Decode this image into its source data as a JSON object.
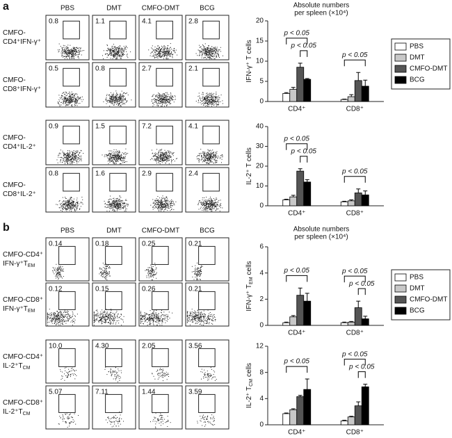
{
  "panels": [
    {
      "label": "a",
      "columns": [
        "PBS",
        "DMT",
        "CMFO-DMT",
        "BCG"
      ],
      "rows": [
        {
          "label": [
            {
              "text": "CMFO-"
            },
            {
              "text": "CD4⁺IFN-γ⁺"
            }
          ],
          "gates": [
            "0.8",
            "1.1",
            "4.1",
            "2.8"
          ]
        },
        {
          "label": [
            {
              "text": "CMFO-"
            },
            {
              "text": "CD8⁺IFN-γ⁺"
            }
          ],
          "gates": [
            "0.5",
            "0.8",
            "2.7",
            "2.1"
          ]
        },
        {
          "label": [
            {
              "text": "CMFO-"
            },
            {
              "text": "CD4⁺IL-2⁺"
            }
          ],
          "gates": [
            "0.9",
            "1.5",
            "7.2",
            "4.1"
          ]
        },
        {
          "label": [
            {
              "text": "CMFO-"
            },
            {
              "text": "CD8⁺IL-2⁺"
            }
          ],
          "gates": [
            "0.8",
            "1.6",
            "2.9",
            "2.4"
          ]
        }
      ]
    },
    {
      "label": "b",
      "columns": [
        "PBS",
        "DMT",
        "CMFO-DMT",
        "BCG"
      ],
      "rows": [
        {
          "label": [
            {
              "text": "CMFO-CD4⁺"
            },
            {
              "text": "IFN-γ⁺T",
              "sub": "EM"
            }
          ],
          "gates": [
            "0.14",
            "0.18",
            "0.25",
            "0.21"
          ]
        },
        {
          "label": [
            {
              "text": "CMFO-CD8⁺"
            },
            {
              "text": "IFN-γ⁺T",
              "sub": "EM"
            }
          ],
          "gates": [
            "0.12",
            "0.15",
            "0.26",
            "0.21"
          ]
        },
        {
          "label": [
            {
              "text": "CMFO-CD4⁺"
            },
            {
              "text": "IL-2⁺T",
              "sub": "CM"
            }
          ],
          "gates": [
            "10.0",
            "4.30",
            "2.05",
            "3.56"
          ]
        },
        {
          "label": [
            {
              "text": "CMFO-CD8⁺"
            },
            {
              "text": "IL-2⁺T",
              "sub": "CM"
            }
          ],
          "gates": [
            "5.07",
            "7.11",
            "1.44",
            "3.59"
          ]
        }
      ]
    }
  ],
  "chart_data": [
    {
      "type": "bar",
      "title_lines": [
        "Absolute numbers",
        "per spleen (×10⁴)"
      ],
      "ylabel": {
        "text": "IFN-γ⁺ T cells"
      },
      "categories": [
        "CD4⁺",
        "CD8⁺"
      ],
      "series": [
        {
          "name": "PBS",
          "color": "#ffffff",
          "values": [
            2,
            0.5
          ],
          "errors": [
            0.2,
            0.1
          ]
        },
        {
          "name": "DMT",
          "color": "#c8c8c8",
          "values": [
            3,
            1.2
          ],
          "errors": [
            0.5,
            0.5
          ]
        },
        {
          "name": "CMFO-DMT",
          "color": "#555555",
          "values": [
            8.5,
            5.2
          ],
          "errors": [
            1,
            2
          ]
        },
        {
          "name": "BCG",
          "color": "#000000",
          "values": [
            5.5,
            3.8
          ],
          "errors": [
            0.2,
            1.5
          ]
        }
      ],
      "ylim": [
        0,
        20
      ],
      "yticks": [
        0,
        5,
        10,
        15,
        20
      ],
      "legend": "right",
      "annotations": [
        {
          "text": "p < 0.05",
          "category": "CD4⁺",
          "from": "PBS",
          "to": "BCG"
        },
        {
          "text": "p < 0.05",
          "category": "CD4⁺",
          "from": "CMFO-DMT",
          "to": "BCG"
        },
        {
          "text": "p < 0.05",
          "category": "CD8⁺",
          "from": "PBS",
          "to": "BCG"
        }
      ]
    },
    {
      "type": "bar",
      "ylabel": {
        "text": "IL-2⁺ T cells"
      },
      "categories": [
        "CD4⁺",
        "CD8⁺"
      ],
      "series": [
        {
          "name": "PBS",
          "color": "#ffffff",
          "values": [
            3,
            2
          ],
          "errors": [
            0.3,
            0.3
          ]
        },
        {
          "name": "DMT",
          "color": "#c8c8c8",
          "values": [
            4.5,
            2.5
          ],
          "errors": [
            0.8,
            0.5
          ]
        },
        {
          "name": "CMFO-DMT",
          "color": "#555555",
          "values": [
            17.5,
            6.5
          ],
          "errors": [
            1.2,
            2
          ]
        },
        {
          "name": "BCG",
          "color": "#000000",
          "values": [
            12,
            5.5
          ],
          "errors": [
            1.2,
            2
          ]
        }
      ],
      "ylim": [
        0,
        40
      ],
      "yticks": [
        0,
        10,
        20,
        30,
        40
      ],
      "annotations": [
        {
          "text": "p < 0.05",
          "category": "CD4⁺",
          "from": "PBS",
          "to": "BCG"
        },
        {
          "text": "p < 0.05",
          "category": "CD4⁺",
          "from": "CMFO-DMT",
          "to": "BCG"
        },
        {
          "text": "p < 0.05",
          "category": "CD8⁺",
          "from": "PBS",
          "to": "BCG"
        }
      ]
    },
    {
      "type": "bar",
      "title_lines": [
        "Absolute numbers",
        "per spleen (×10⁴)"
      ],
      "ylabel": {
        "text": "IFN-γ⁺ T",
        "sub": "EM",
        "tail": "cells"
      },
      "categories": [
        "CD4⁺",
        "CD8⁺"
      ],
      "series": [
        {
          "name": "PBS",
          "color": "#ffffff",
          "values": [
            0.2,
            0.2
          ],
          "errors": [
            0.05,
            0.05
          ]
        },
        {
          "name": "DMT",
          "color": "#c8c8c8",
          "values": [
            0.65,
            0.25
          ],
          "errors": [
            0.1,
            0.05
          ]
        },
        {
          "name": "CMFO-DMT",
          "color": "#555555",
          "values": [
            2.3,
            1.35
          ],
          "errors": [
            0.55,
            0.5
          ]
        },
        {
          "name": "BCG",
          "color": "#000000",
          "values": [
            1.85,
            0.5
          ],
          "errors": [
            0.6,
            0.2
          ]
        }
      ],
      "ylim": [
        0,
        6
      ],
      "yticks": [
        0,
        2,
        4,
        6
      ],
      "legend": "right",
      "annotations": [
        {
          "text": "p < 0.05",
          "category": "CD4⁺",
          "from": "PBS",
          "to": "BCG"
        },
        {
          "text": "p < 0.05",
          "category": "CD8⁺",
          "from": "PBS",
          "to": "BCG"
        },
        {
          "text": "p < 0.05",
          "category": "CD8⁺",
          "from": "CMFO-DMT",
          "to": "BCG"
        }
      ]
    },
    {
      "type": "bar",
      "ylabel": {
        "text": "IL-2⁺ T",
        "sub": "CM",
        "tail": "cells"
      },
      "categories": [
        "CD4⁺",
        "CD8⁺"
      ],
      "series": [
        {
          "name": "PBS",
          "color": "#ffffff",
          "values": [
            1.7,
            0.6
          ],
          "errors": [
            0.1,
            0.1
          ]
        },
        {
          "name": "DMT",
          "color": "#c8c8c8",
          "values": [
            2.3,
            1.2
          ],
          "errors": [
            0.15,
            0.1
          ]
        },
        {
          "name": "CMFO-DMT",
          "color": "#555555",
          "values": [
            4.3,
            2.9
          ],
          "errors": [
            0.2,
            0.6
          ]
        },
        {
          "name": "BCG",
          "color": "#000000",
          "values": [
            5.4,
            5.8
          ],
          "errors": [
            1.6,
            0.4
          ]
        }
      ],
      "ylim": [
        0,
        12
      ],
      "yticks": [
        0,
        4,
        8,
        12
      ],
      "annotations": [
        {
          "text": "p < 0.05",
          "category": "CD4⁺",
          "from": "PBS",
          "to": "BCG"
        },
        {
          "text": "p < 0.05",
          "category": "CD8⁺",
          "from": "PBS",
          "to": "BCG"
        },
        {
          "text": "p < 0.05",
          "category": "CD8⁺",
          "from": "CMFO-DMT",
          "to": "BCG"
        }
      ]
    }
  ]
}
